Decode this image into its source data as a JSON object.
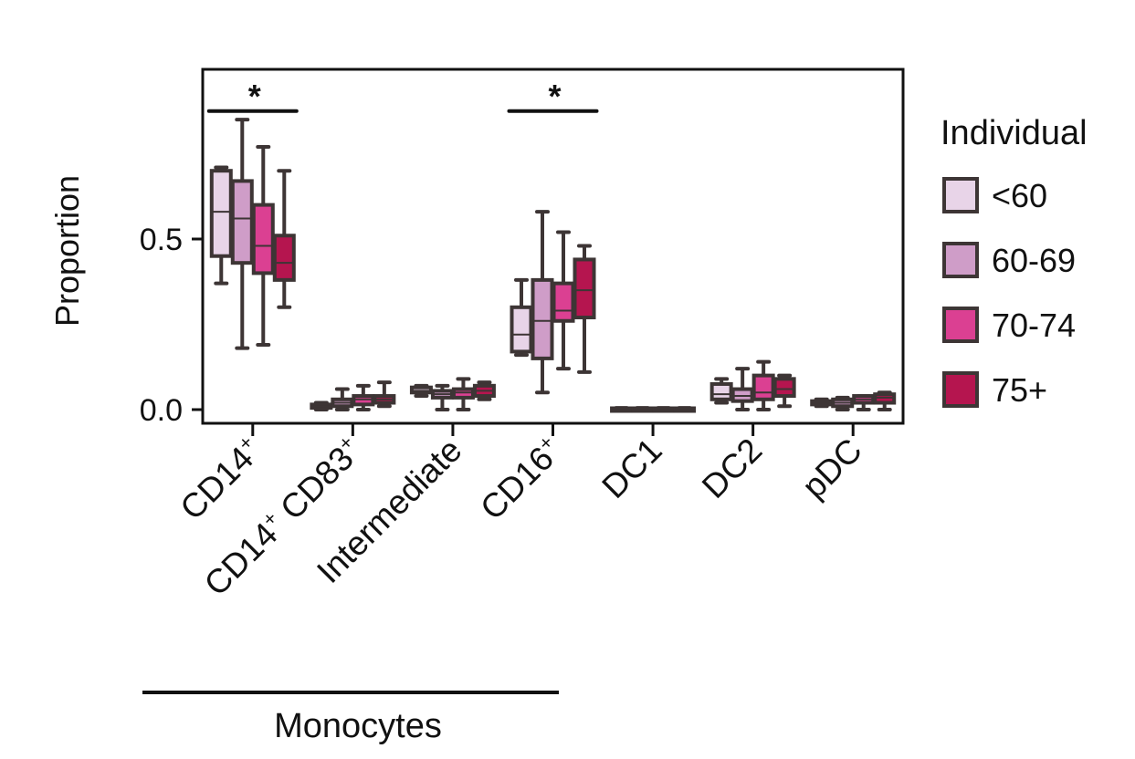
{
  "chart_data": {
    "type": "box",
    "ylabel": "Proportion",
    "ylim": [
      -0.04,
      0.99
    ],
    "yticks": [
      {
        "value": 0.0,
        "label": "0.0"
      },
      {
        "value": 0.5,
        "label": "0.5"
      }
    ],
    "categories": [
      {
        "base": "CD14",
        "sup": "+"
      },
      {
        "base": "CD14",
        "sup": "+",
        "base2": " CD83",
        "sup2": "+"
      },
      {
        "base": "Intermediate"
      },
      {
        "base": "CD16",
        "sup": "+"
      },
      {
        "base": "DC1"
      },
      {
        "base": "DC2"
      },
      {
        "base": "pDC"
      }
    ],
    "group_label": "Monocytes",
    "legend_title": "Individual",
    "legend_position": "right",
    "colors": {
      "<60": "#e8d4e8",
      "60-69": "#cf9dc8",
      "70-74": "#db4092",
      "75+": "#b5154f",
      "edge": "#3d3535"
    },
    "series": [
      {
        "name": "<60",
        "boxes": [
          [
            0.37,
            0.45,
            0.58,
            0.7,
            0.71
          ],
          [
            0.0,
            0.005,
            0.01,
            0.015,
            0.02
          ],
          [
            0.04,
            0.05,
            0.055,
            0.065,
            0.07
          ],
          [
            0.16,
            0.17,
            0.22,
            0.3,
            0.38
          ],
          [
            0.0,
            0.002,
            0.003,
            0.004,
            0.005
          ],
          [
            0.02,
            0.03,
            0.045,
            0.075,
            0.09
          ],
          [
            0.01,
            0.015,
            0.02,
            0.025,
            0.03
          ]
        ]
      },
      {
        "name": "60-69",
        "boxes": [
          [
            0.18,
            0.43,
            0.56,
            0.67,
            0.85
          ],
          [
            0.0,
            0.01,
            0.02,
            0.03,
            0.06
          ],
          [
            0.0,
            0.035,
            0.045,
            0.055,
            0.07
          ],
          [
            0.05,
            0.15,
            0.26,
            0.38,
            0.58
          ],
          [
            0.0,
            0.002,
            0.003,
            0.004,
            0.005
          ],
          [
            0.0,
            0.025,
            0.04,
            0.06,
            0.12
          ],
          [
            0.0,
            0.01,
            0.02,
            0.03,
            0.035
          ]
        ]
      },
      {
        "name": "70-74",
        "boxes": [
          [
            0.19,
            0.4,
            0.48,
            0.6,
            0.77
          ],
          [
            0.0,
            0.015,
            0.03,
            0.04,
            0.07
          ],
          [
            0.0,
            0.035,
            0.05,
            0.06,
            0.09
          ],
          [
            0.12,
            0.26,
            0.29,
            0.37,
            0.52
          ],
          [
            0.0,
            0.002,
            0.003,
            0.004,
            0.005
          ],
          [
            0.0,
            0.03,
            0.05,
            0.1,
            0.14
          ],
          [
            0.0,
            0.02,
            0.03,
            0.04,
            0.04
          ]
        ]
      },
      {
        "name": "75+",
        "boxes": [
          [
            0.3,
            0.38,
            0.43,
            0.51,
            0.7
          ],
          [
            0.01,
            0.02,
            0.03,
            0.04,
            0.08
          ],
          [
            0.03,
            0.04,
            0.055,
            0.07,
            0.08
          ],
          [
            0.11,
            0.27,
            0.35,
            0.44,
            0.48
          ],
          [
            0.0,
            0.002,
            0.003,
            0.004,
            0.005
          ],
          [
            0.01,
            0.04,
            0.06,
            0.09,
            0.1
          ],
          [
            0.0,
            0.02,
            0.035,
            0.045,
            0.05
          ]
        ]
      }
    ],
    "significance": [
      {
        "category_index": 0,
        "label": "*",
        "y": 0.875
      },
      {
        "category_index": 3,
        "label": "*",
        "y": 0.875
      }
    ]
  }
}
